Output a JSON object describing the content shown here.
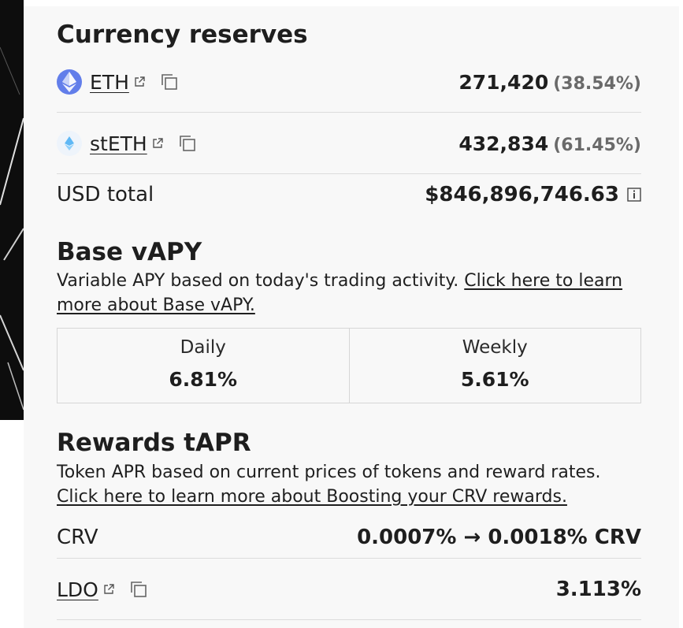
{
  "currency_reserves": {
    "title": "Currency reserves",
    "items": [
      {
        "token": "ETH",
        "amount": "271,420",
        "percent": "(38.54%)"
      },
      {
        "token": "stETH",
        "amount": "432,834",
        "percent": "(61.45%)"
      }
    ],
    "usd_total_label": "USD total",
    "usd_total_value": "$846,896,746.63"
  },
  "base_vapy": {
    "title": "Base vAPY",
    "description": "Variable APY based on today's trading activity. ",
    "link_text": "Click here to learn more about Base vAPY.",
    "daily_label": "Daily",
    "daily_value": "6.81%",
    "weekly_label": "Weekly",
    "weekly_value": "5.61%"
  },
  "rewards_tapr": {
    "title": "Rewards tAPR",
    "description": "Token APR based on current prices of tokens and reward rates.",
    "link_text": "Click here to learn more about Boosting your CRV rewards.",
    "items": [
      {
        "token": "CRV",
        "value": "0.0007% → 0.0018% CRV"
      },
      {
        "token": "LDO",
        "value": "3.113%"
      }
    ]
  },
  "icons": {
    "eth": "ethereum-logo-icon",
    "steth": "steth-logo-icon",
    "external": "external-link-icon",
    "copy": "copy-icon",
    "info": "info-icon"
  },
  "colors": {
    "eth_brand": "#627eea",
    "steth_brand": "#00a3ff",
    "panel_bg": "#f8f8f8",
    "muted_text": "#6a6a6a"
  }
}
